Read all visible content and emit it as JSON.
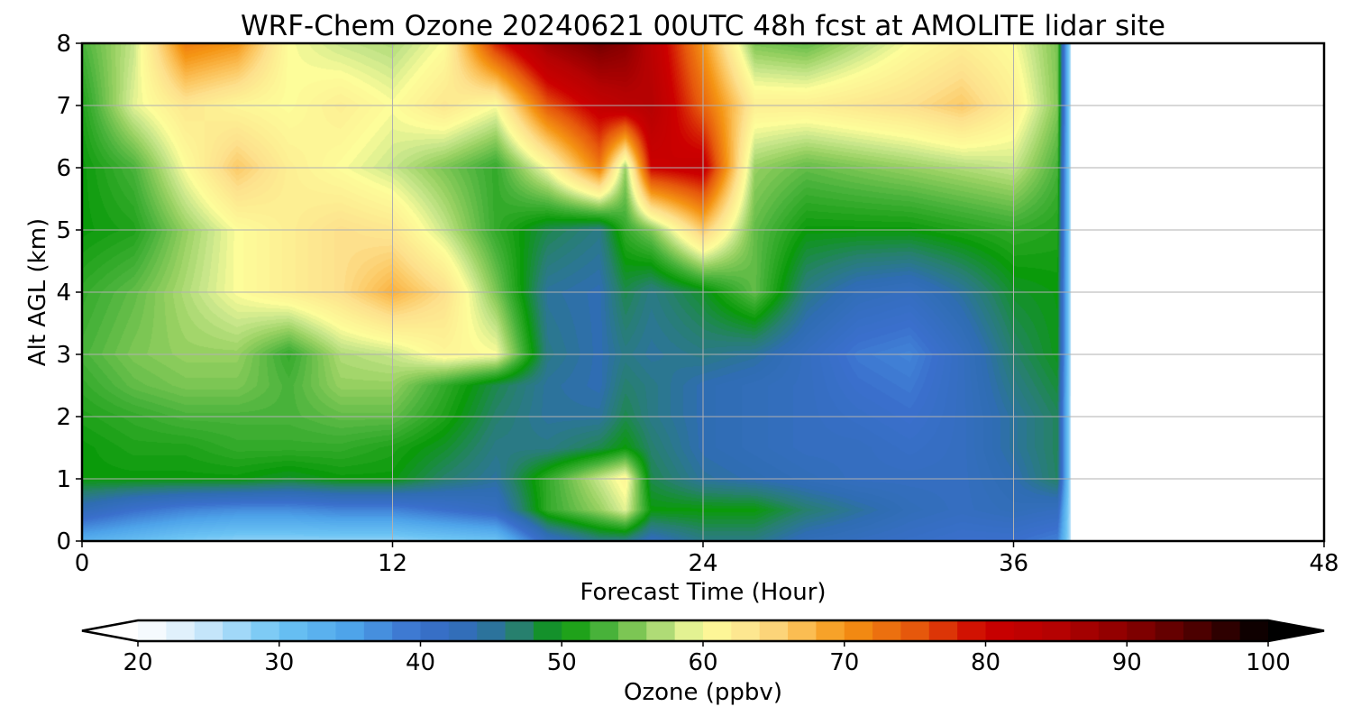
{
  "chart_data": {
    "type": "heatmap",
    "title": "WRF-Chem Ozone  20240621 00UTC 48h fcst at AMOLITE lidar site",
    "xlabel": "Forecast Time (Hour)",
    "ylabel": "Alt AGL (km)",
    "xlim": [
      0,
      48
    ],
    "ylim": [
      0,
      8
    ],
    "x_ticks": [
      0,
      12,
      24,
      36,
      48
    ],
    "y_ticks": [
      0,
      1,
      2,
      3,
      4,
      5,
      6,
      7,
      8
    ],
    "grid": true,
    "data_end_hour": 38.2,
    "x": [
      0,
      2,
      4,
      6,
      8,
      10,
      12,
      14,
      16,
      18,
      20,
      21,
      22,
      24,
      26,
      28,
      30,
      32,
      34,
      36,
      38
    ],
    "y": [
      0,
      0.5,
      1,
      1.5,
      2,
      2.5,
      3,
      4,
      5,
      6,
      7,
      8
    ],
    "z": [
      [
        33,
        31,
        29,
        28,
        28,
        28,
        28,
        29,
        30,
        42,
        46,
        46,
        43,
        46,
        46,
        43,
        42,
        41,
        40,
        40,
        38
      ],
      [
        43,
        40,
        38,
        37,
        37,
        38,
        38,
        40,
        42,
        52,
        56,
        59,
        50,
        50,
        50,
        47,
        45,
        43,
        42,
        43,
        42
      ],
      [
        50,
        50,
        50,
        50,
        49,
        50,
        50,
        47,
        45,
        52,
        58,
        61,
        48,
        45,
        44,
        43,
        42,
        42,
        42,
        44,
        48
      ],
      [
        50,
        51,
        51,
        52,
        52,
        52,
        51,
        49,
        46,
        46,
        48,
        50,
        47,
        44,
        43,
        42,
        42,
        41,
        42,
        45,
        48
      ],
      [
        51,
        52,
        53,
        53,
        53,
        54,
        54,
        51,
        47,
        45,
        45,
        48,
        46,
        44,
        43,
        42,
        41,
        40,
        42,
        45,
        48
      ],
      [
        52,
        54,
        55,
        55,
        53,
        56,
        56,
        52,
        48,
        45,
        44,
        47,
        46,
        44,
        43,
        42,
        40,
        39,
        42,
        46,
        49
      ],
      [
        53,
        55,
        56,
        56,
        52,
        57,
        58,
        61,
        60,
        46,
        44,
        46,
        45,
        46,
        45,
        42,
        39,
        38,
        42,
        47,
        50
      ],
      [
        52,
        54,
        57,
        60,
        62,
        64,
        68,
        64,
        55,
        45,
        44,
        48,
        46,
        49,
        54,
        46,
        43,
        42,
        45,
        49,
        50
      ],
      [
        50,
        51,
        56,
        60,
        62,
        64,
        63,
        58,
        52,
        48,
        46,
        52,
        55,
        66,
        54,
        50,
        50,
        50,
        51,
        52,
        51
      ],
      [
        50,
        53,
        60,
        66,
        62,
        60,
        58,
        55,
        52,
        60,
        72,
        56,
        80,
        82,
        56,
        54,
        55,
        56,
        57,
        58,
        52
      ],
      [
        51,
        59,
        63,
        61,
        60,
        62,
        60,
        63,
        60,
        75,
        82,
        84,
        85,
        74,
        62,
        62,
        63,
        64,
        66,
        62,
        54
      ],
      [
        53,
        58,
        72,
        70,
        60,
        58,
        57,
        60,
        78,
        88,
        92,
        90,
        84,
        70,
        55,
        54,
        57,
        60,
        62,
        60,
        54
      ]
    ],
    "colorbar": {
      "label": "Ozone  (ppbv)",
      "min": 20,
      "max": 100,
      "ticks": [
        20,
        30,
        40,
        50,
        60,
        70,
        80,
        90,
        100
      ],
      "extend": "both",
      "stops": [
        {
          "v": 20,
          "c": "#ffffff"
        },
        {
          "v": 24,
          "c": "#d6ecfb"
        },
        {
          "v": 30,
          "c": "#6cc4f4"
        },
        {
          "v": 35,
          "c": "#4ea4ea"
        },
        {
          "v": 40,
          "c": "#3a6fcc"
        },
        {
          "v": 44,
          "c": "#2f6db3"
        },
        {
          "v": 47,
          "c": "#27806e"
        },
        {
          "v": 50,
          "c": "#0a9a0a"
        },
        {
          "v": 53,
          "c": "#48b23a"
        },
        {
          "v": 56,
          "c": "#96d061"
        },
        {
          "v": 58,
          "c": "#c8e68a"
        },
        {
          "v": 60,
          "c": "#fdfd9a"
        },
        {
          "v": 64,
          "c": "#fde08c"
        },
        {
          "v": 67,
          "c": "#fbbd52"
        },
        {
          "v": 70,
          "c": "#f59514"
        },
        {
          "v": 75,
          "c": "#e6580c"
        },
        {
          "v": 80,
          "c": "#cc0000"
        },
        {
          "v": 85,
          "c": "#b50202"
        },
        {
          "v": 90,
          "c": "#8a0000"
        },
        {
          "v": 95,
          "c": "#4c0000"
        },
        {
          "v": 100,
          "c": "#000000"
        }
      ]
    }
  }
}
